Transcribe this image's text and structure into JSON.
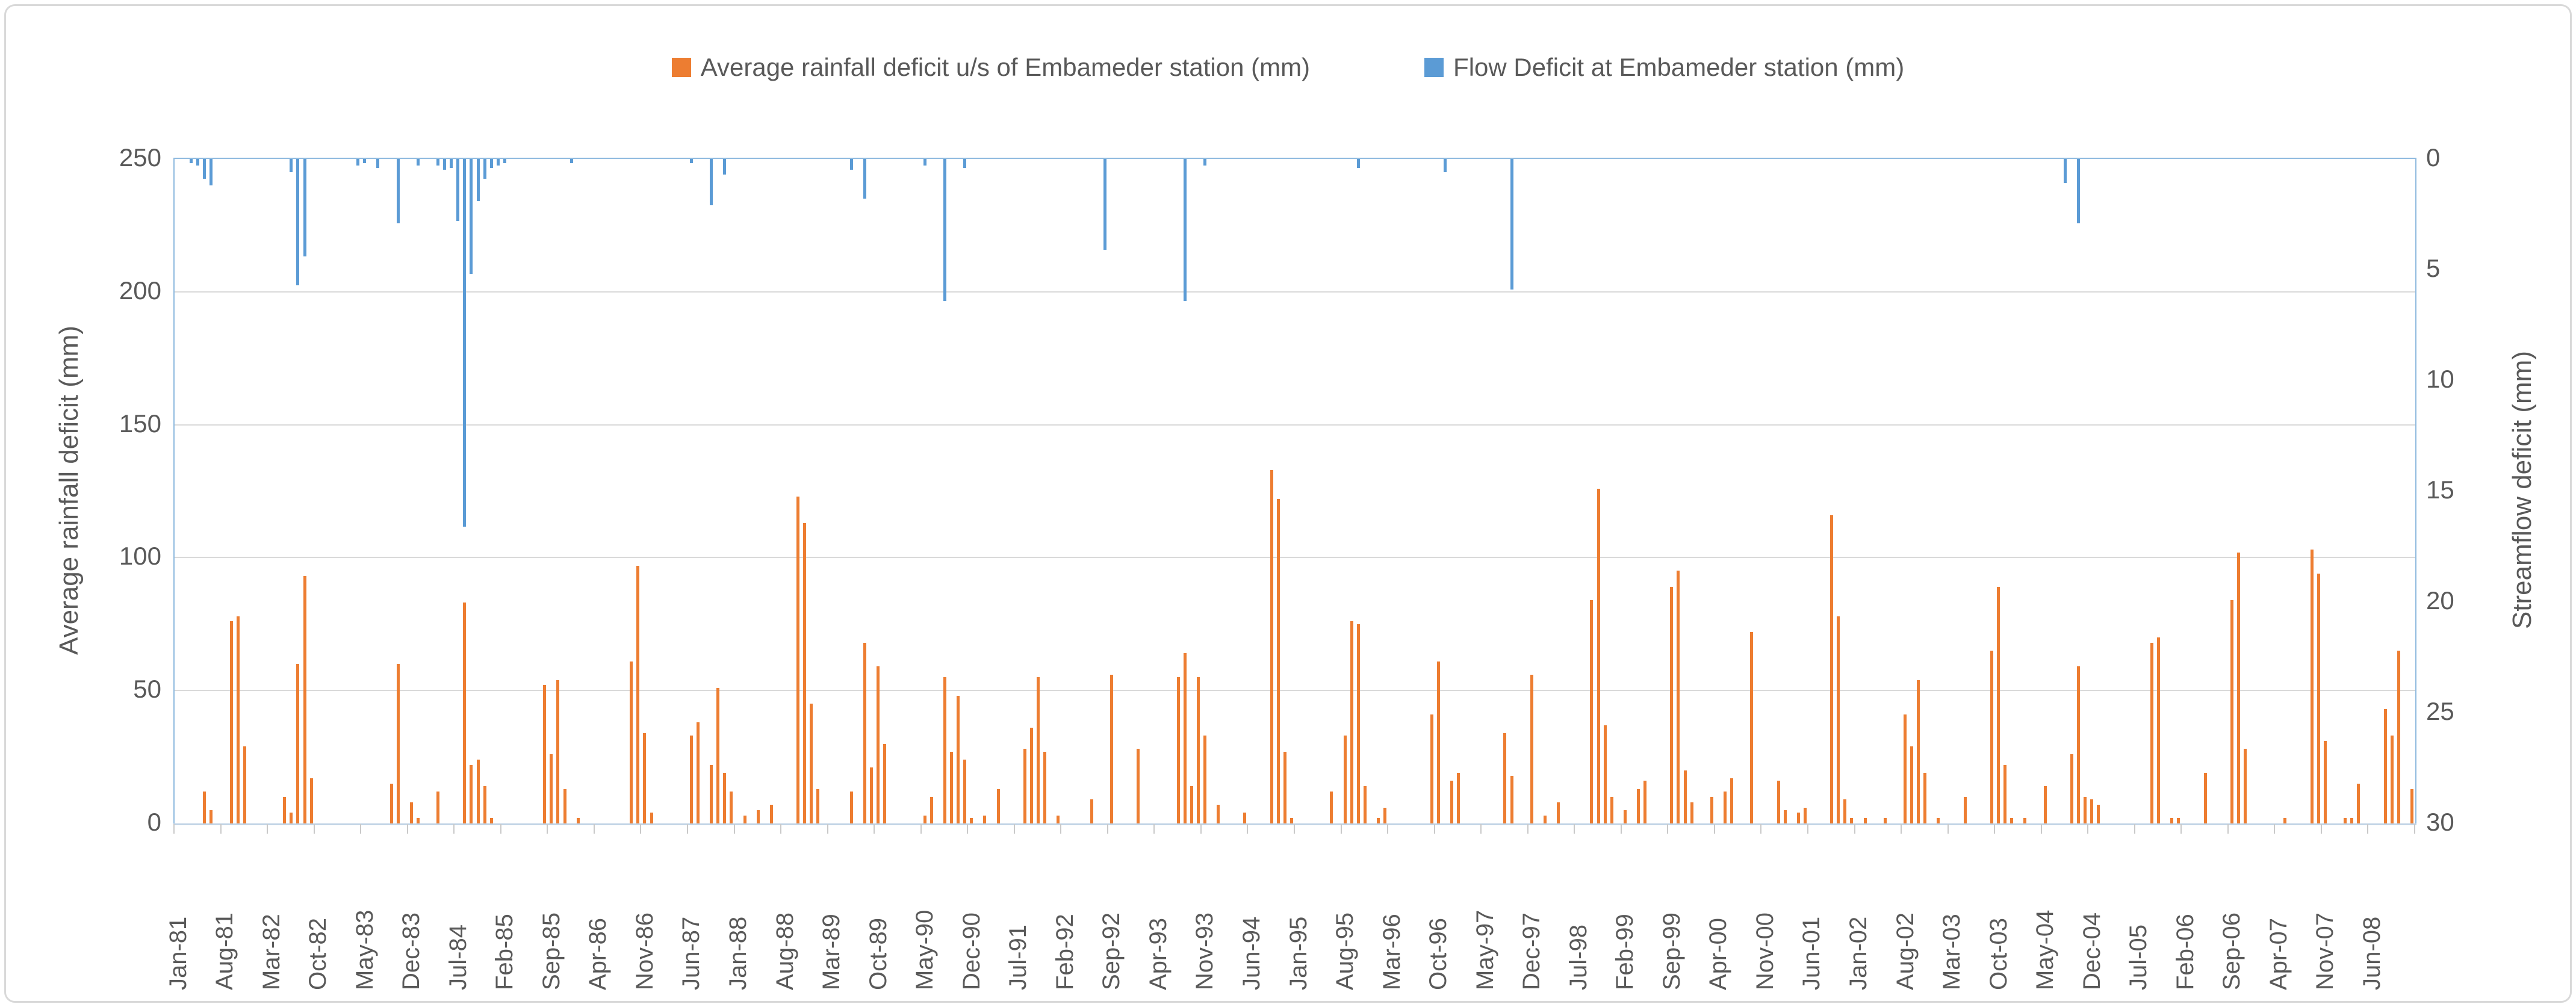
{
  "colors": {
    "rain_series": "#ed7d31",
    "flow_series": "#5b9bd5",
    "gridline": "#d9d9d9",
    "plot_border": "#8fbadf",
    "text": "#595959"
  },
  "chart_data": {
    "type": "bar",
    "title": "",
    "x_axis": {
      "start_month": "Jan-81",
      "end_month": "Dec-08",
      "n_months": 336,
      "label_interval": 7,
      "tick_labels": [
        "Jan-81",
        "Aug-81",
        "Mar-82",
        "Oct-82",
        "May-83",
        "Dec-83",
        "Jul-84",
        "Feb-85",
        "Sep-85",
        "Apr-86",
        "Nov-86",
        "Jun-87",
        "Jan-88",
        "Aug-88",
        "Mar-89",
        "Oct-89",
        "May-90",
        "Dec-90",
        "Jul-91",
        "Feb-92",
        "Sep-92",
        "Apr-93",
        "Nov-93",
        "Jun-94",
        "Jan-95",
        "Aug-95",
        "Mar-96",
        "Oct-96",
        "May-97",
        "Dec-97",
        "Jul-98",
        "Feb-99",
        "Sep-99",
        "Apr-00",
        "Nov-00",
        "Jun-01",
        "Jan-02",
        "Aug-02",
        "Mar-03",
        "Oct-03",
        "May-04",
        "Dec-04",
        "Jul-05",
        "Feb-06",
        "Sep-06",
        "Apr-07",
        "Nov-07",
        "Jun-08"
      ]
    },
    "left_axis": {
      "title": "Average rainfall deficit (mm)",
      "min": 0,
      "max": 250,
      "ticks": [
        0,
        50,
        100,
        150,
        200,
        250
      ],
      "gridlines": true
    },
    "right_axis": {
      "title": "Streamflow deficit (mm)",
      "min": 0,
      "max": 30,
      "inverted": true,
      "ticks": [
        0,
        5,
        10,
        15,
        20,
        25,
        30
      ]
    },
    "series": [
      {
        "name": "Average rainfall deficit u/s of Embameder station (mm)",
        "axis": "left",
        "color": "#ed7d31",
        "direction": "up-from-bottom",
        "points": [
          [
            "May-81",
            12
          ],
          [
            "Jun-81",
            5
          ],
          [
            "Sep-81",
            76
          ],
          [
            "Oct-81",
            78
          ],
          [
            "Nov-81",
            29
          ],
          [
            "May-82",
            10
          ],
          [
            "Jun-82",
            4
          ],
          [
            "Jul-82",
            60
          ],
          [
            "Aug-82",
            93
          ],
          [
            "Sep-82",
            17
          ],
          [
            "Sep-83",
            15
          ],
          [
            "Oct-83",
            60
          ],
          [
            "Dec-83",
            8
          ],
          [
            "Jan-84",
            2
          ],
          [
            "Apr-84",
            12
          ],
          [
            "Aug-84",
            83
          ],
          [
            "Sep-84",
            22
          ],
          [
            "Oct-84",
            24
          ],
          [
            "Nov-84",
            14
          ],
          [
            "Dec-84",
            2
          ],
          [
            "Aug-85",
            52
          ],
          [
            "Sep-85",
            26
          ],
          [
            "Oct-85",
            54
          ],
          [
            "Nov-85",
            13
          ],
          [
            "Jan-86",
            2
          ],
          [
            "Sep-86",
            61
          ],
          [
            "Oct-86",
            97
          ],
          [
            "Nov-86",
            34
          ],
          [
            "Dec-86",
            4
          ],
          [
            "Jun-87",
            33
          ],
          [
            "Jul-87",
            38
          ],
          [
            "Sep-87",
            22
          ],
          [
            "Oct-87",
            51
          ],
          [
            "Nov-87",
            19
          ],
          [
            "Dec-87",
            12
          ],
          [
            "Feb-88",
            3
          ],
          [
            "Apr-88",
            5
          ],
          [
            "Jun-88",
            7
          ],
          [
            "Oct-88",
            123
          ],
          [
            "Nov-88",
            113
          ],
          [
            "Dec-88",
            45
          ],
          [
            "Jan-89",
            13
          ],
          [
            "Jun-89",
            12
          ],
          [
            "Aug-89",
            68
          ],
          [
            "Sep-89",
            21
          ],
          [
            "Oct-89",
            59
          ],
          [
            "Nov-89",
            30
          ],
          [
            "May-90",
            3
          ],
          [
            "Jun-90",
            10
          ],
          [
            "Aug-90",
            55
          ],
          [
            "Sep-90",
            27
          ],
          [
            "Oct-90",
            48
          ],
          [
            "Nov-90",
            24
          ],
          [
            "Dec-90",
            2
          ],
          [
            "Feb-91",
            3
          ],
          [
            "Apr-91",
            13
          ],
          [
            "Aug-91",
            28
          ],
          [
            "Sep-91",
            36
          ],
          [
            "Oct-91",
            55
          ],
          [
            "Nov-91",
            27
          ],
          [
            "Jan-92",
            3
          ],
          [
            "Jun-92",
            9
          ],
          [
            "Sep-92",
            56
          ],
          [
            "Jan-93",
            28
          ],
          [
            "Jul-93",
            55
          ],
          [
            "Aug-93",
            64
          ],
          [
            "Sep-93",
            14
          ],
          [
            "Oct-93",
            55
          ],
          [
            "Nov-93",
            33
          ],
          [
            "Jan-94",
            7
          ],
          [
            "May-94",
            4
          ],
          [
            "Sep-94",
            133
          ],
          [
            "Oct-94",
            122
          ],
          [
            "Nov-94",
            27
          ],
          [
            "Dec-94",
            2
          ],
          [
            "Jun-95",
            12
          ],
          [
            "Aug-95",
            33
          ],
          [
            "Sep-95",
            76
          ],
          [
            "Oct-95",
            75
          ],
          [
            "Nov-95",
            14
          ],
          [
            "Jan-96",
            2
          ],
          [
            "Feb-96",
            6
          ],
          [
            "Sep-96",
            41
          ],
          [
            "Oct-96",
            61
          ],
          [
            "Dec-96",
            16
          ],
          [
            "Jan-97",
            19
          ],
          [
            "Aug-97",
            34
          ],
          [
            "Sep-97",
            18
          ],
          [
            "Dec-97",
            56
          ],
          [
            "Feb-98",
            3
          ],
          [
            "Apr-98",
            8
          ],
          [
            "Sep-98",
            84
          ],
          [
            "Oct-98",
            126
          ],
          [
            "Nov-98",
            37
          ],
          [
            "Dec-98",
            10
          ],
          [
            "Feb-99",
            5
          ],
          [
            "Apr-99",
            13
          ],
          [
            "May-99",
            16
          ],
          [
            "Sep-99",
            89
          ],
          [
            "Oct-99",
            95
          ],
          [
            "Nov-99",
            20
          ],
          [
            "Dec-99",
            8
          ],
          [
            "Mar-00",
            10
          ],
          [
            "May-00",
            12
          ],
          [
            "Jun-00",
            17
          ],
          [
            "Sep-00",
            72
          ],
          [
            "Jan-01",
            16
          ],
          [
            "Feb-01",
            5
          ],
          [
            "Apr-01",
            4
          ],
          [
            "May-01",
            6
          ],
          [
            "Sep-01",
            116
          ],
          [
            "Oct-01",
            78
          ],
          [
            "Nov-01",
            9
          ],
          [
            "Dec-01",
            2
          ],
          [
            "Feb-02",
            2
          ],
          [
            "May-02",
            2
          ],
          [
            "Aug-02",
            41
          ],
          [
            "Sep-02",
            29
          ],
          [
            "Oct-02",
            54
          ],
          [
            "Nov-02",
            19
          ],
          [
            "Jan-03",
            2
          ],
          [
            "May-03",
            10
          ],
          [
            "Sep-03",
            65
          ],
          [
            "Oct-03",
            89
          ],
          [
            "Nov-03",
            22
          ],
          [
            "Dec-03",
            2
          ],
          [
            "Feb-04",
            2
          ],
          [
            "May-04",
            14
          ],
          [
            "Sep-04",
            26
          ],
          [
            "Oct-04",
            59
          ],
          [
            "Nov-04",
            10
          ],
          [
            "Dec-04",
            9
          ],
          [
            "Jan-05",
            7
          ],
          [
            "Sep-05",
            68
          ],
          [
            "Oct-05",
            70
          ],
          [
            "Dec-05",
            2
          ],
          [
            "Jan-06",
            2
          ],
          [
            "May-06",
            19
          ],
          [
            "Sep-06",
            84
          ],
          [
            "Oct-06",
            102
          ],
          [
            "Nov-06",
            28
          ],
          [
            "May-07",
            2
          ],
          [
            "Sep-07",
            103
          ],
          [
            "Oct-07",
            94
          ],
          [
            "Nov-07",
            31
          ],
          [
            "Feb-08",
            2
          ],
          [
            "Mar-08",
            2
          ],
          [
            "Apr-08",
            15
          ],
          [
            "Aug-08",
            43
          ],
          [
            "Sep-08",
            33
          ],
          [
            "Oct-08",
            65
          ],
          [
            "Dec-08",
            13
          ]
        ]
      },
      {
        "name": "Flow Deficit at Embameder station (mm)",
        "axis": "right",
        "color": "#5b9bd5",
        "direction": "down-from-top",
        "points": [
          [
            "Mar-81",
            0.2
          ],
          [
            "Apr-81",
            0.3
          ],
          [
            "May-81",
            0.9
          ],
          [
            "Jun-81",
            1.2
          ],
          [
            "Jun-82",
            0.6
          ],
          [
            "Jul-82",
            5.7
          ],
          [
            "Aug-82",
            4.4
          ],
          [
            "Apr-83",
            0.3
          ],
          [
            "May-83",
            0.2
          ],
          [
            "Jul-83",
            0.4
          ],
          [
            "Oct-83",
            2.9
          ],
          [
            "Jan-84",
            0.3
          ],
          [
            "Apr-84",
            0.3
          ],
          [
            "May-84",
            0.5
          ],
          [
            "Jun-84",
            0.4
          ],
          [
            "Jul-84",
            2.8
          ],
          [
            "Aug-84",
            16.6
          ],
          [
            "Sep-84",
            5.2
          ],
          [
            "Oct-84",
            1.9
          ],
          [
            "Nov-84",
            0.9
          ],
          [
            "Dec-84",
            0.4
          ],
          [
            "Jan-85",
            0.3
          ],
          [
            "Feb-85",
            0.2
          ],
          [
            "Dec-85",
            0.2
          ],
          [
            "Jun-87",
            0.2
          ],
          [
            "Sep-87",
            2.1
          ],
          [
            "Nov-87",
            0.7
          ],
          [
            "Jun-89",
            0.5
          ],
          [
            "Aug-89",
            1.8
          ],
          [
            "May-90",
            0.3
          ],
          [
            "Aug-90",
            6.4
          ],
          [
            "Nov-90",
            0.4
          ],
          [
            "Aug-92",
            4.1
          ],
          [
            "Aug-93",
            6.4
          ],
          [
            "Nov-93",
            0.3
          ],
          [
            "Oct-95",
            0.4
          ],
          [
            "Nov-96",
            0.6
          ],
          [
            "Sep-97",
            5.9
          ],
          [
            "Aug-04",
            1.1
          ],
          [
            "Oct-04",
            2.9
          ]
        ]
      }
    ]
  }
}
